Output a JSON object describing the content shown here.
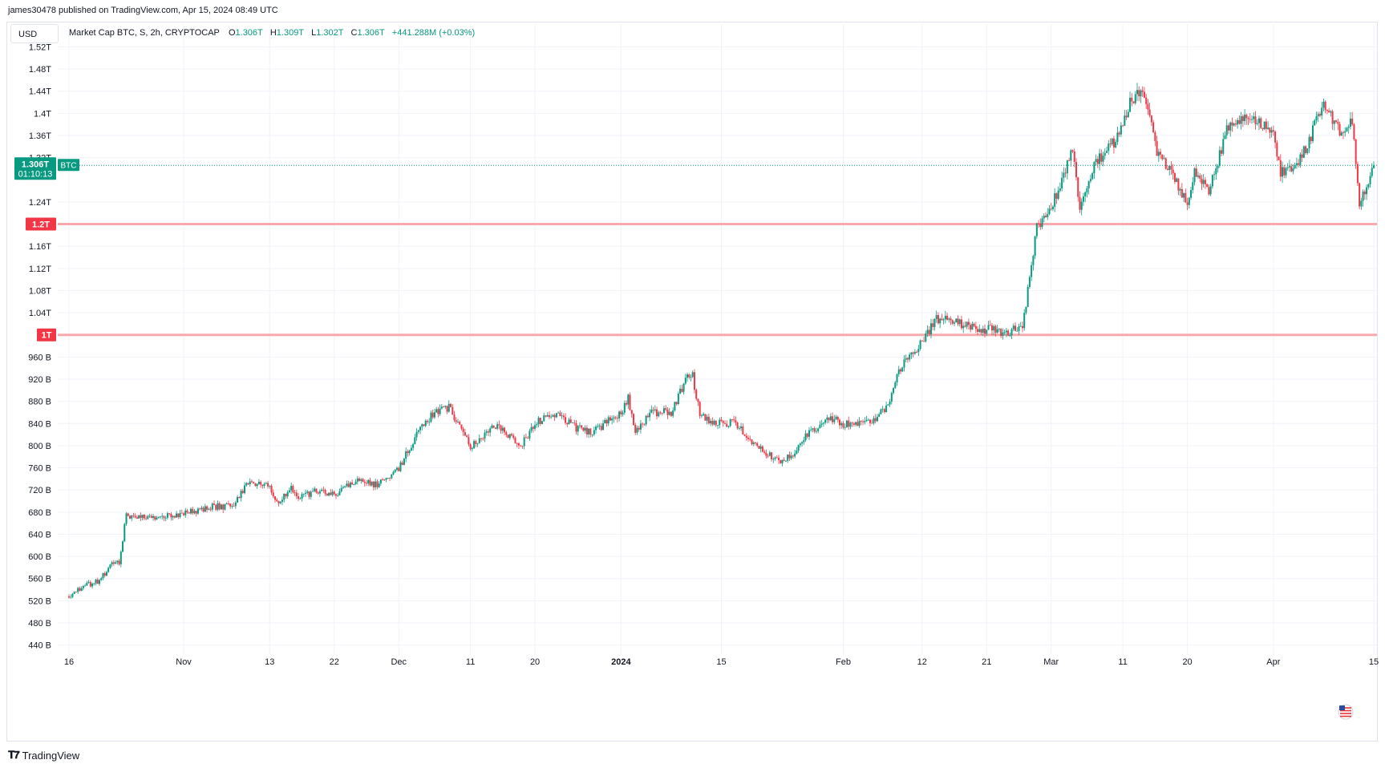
{
  "header": {
    "published_by": "james30478 published on TradingView.com, Apr 15, 2024 08:49 UTC"
  },
  "toolbar": {
    "currency": "USD"
  },
  "legend": {
    "symbol": "Market Cap BTC, S, 2h, CRYPTOCAP",
    "open_label": "O",
    "open": "1.306T",
    "high_label": "H",
    "high": "1.309T",
    "low_label": "L",
    "low": "1.302T",
    "close_label": "C",
    "close": "1.306T",
    "change": "+441.288M (+0.03%)"
  },
  "price_tag": {
    "value": "1.306T",
    "countdown": "01:10:13",
    "ticker": "BTC"
  },
  "colors": {
    "up": "#089981",
    "down": "#f23645",
    "hline": "#f7a9ad",
    "hline_label": "#f23645",
    "grid": "#f0f3fa"
  },
  "horizontal_lines": [
    {
      "label": "1.2T",
      "value": 1.2
    },
    {
      "label": "1T",
      "value": 1.0
    }
  ],
  "footer": {
    "brand": "TradingView",
    "brand_icon": "tradingview-logo-icon",
    "flag_icon": "us-flag-icon"
  },
  "chart_data": {
    "type": "candlestick",
    "title": "Market Cap BTC, S, 2h, CRYPTOCAP",
    "y_unit": "USD",
    "ylim": [
      0.425,
      1.525
    ],
    "y_ticks": [
      {
        "label": "440 B",
        "value": 0.44
      },
      {
        "label": "480 B",
        "value": 0.48
      },
      {
        "label": "520 B",
        "value": 0.52
      },
      {
        "label": "560 B",
        "value": 0.56
      },
      {
        "label": "600 B",
        "value": 0.6
      },
      {
        "label": "640 B",
        "value": 0.64
      },
      {
        "label": "680 B",
        "value": 0.68
      },
      {
        "label": "720 B",
        "value": 0.72
      },
      {
        "label": "760 B",
        "value": 0.76
      },
      {
        "label": "800 B",
        "value": 0.8
      },
      {
        "label": "840 B",
        "value": 0.84
      },
      {
        "label": "880 B",
        "value": 0.88
      },
      {
        "label": "920 B",
        "value": 0.92
      },
      {
        "label": "960 B",
        "value": 0.96
      },
      {
        "label": "1.04T",
        "value": 1.04
      },
      {
        "label": "1.08T",
        "value": 1.08
      },
      {
        "label": "1.12T",
        "value": 1.12
      },
      {
        "label": "1.16T",
        "value": 1.16
      },
      {
        "label": "1.24T",
        "value": 1.24
      },
      {
        "label": "1.32T",
        "value": 1.32
      },
      {
        "label": "1.36T",
        "value": 1.36
      },
      {
        "label": "1.4T",
        "value": 1.4
      },
      {
        "label": "1.44T",
        "value": 1.44
      },
      {
        "label": "1.48T",
        "value": 1.48
      },
      {
        "label": "1.52T",
        "value": 1.52
      }
    ],
    "x_ticks": [
      {
        "label": "16",
        "date": "2023-10-16",
        "bold": false
      },
      {
        "label": "Nov",
        "date": "2023-11-01",
        "bold": false
      },
      {
        "label": "13",
        "date": "2023-11-13",
        "bold": false
      },
      {
        "label": "22",
        "date": "2023-11-22",
        "bold": false
      },
      {
        "label": "Dec",
        "date": "2023-12-01",
        "bold": false
      },
      {
        "label": "11",
        "date": "2023-12-11",
        "bold": false
      },
      {
        "label": "20",
        "date": "2023-12-20",
        "bold": false
      },
      {
        "label": "2024",
        "date": "2024-01-01",
        "bold": true
      },
      {
        "label": "15",
        "date": "2024-01-15",
        "bold": false
      },
      {
        "label": "Feb",
        "date": "2024-02-01",
        "bold": false
      },
      {
        "label": "12",
        "date": "2024-02-12",
        "bold": false
      },
      {
        "label": "21",
        "date": "2024-02-21",
        "bold": false
      },
      {
        "label": "Mar",
        "date": "2024-03-01",
        "bold": false
      },
      {
        "label": "11",
        "date": "2024-03-11",
        "bold": false
      },
      {
        "label": "20",
        "date": "2024-03-20",
        "bold": false
      },
      {
        "label": "Apr",
        "date": "2024-04-01",
        "bold": false
      },
      {
        "label": "15",
        "date": "2024-04-15",
        "bold": false
      }
    ],
    "path_keypoints": [
      {
        "date": "2023-10-16",
        "value": 0.528
      },
      {
        "date": "2023-10-18",
        "value": 0.545
      },
      {
        "date": "2023-10-20",
        "value": 0.555
      },
      {
        "date": "2023-10-22",
        "value": 0.585
      },
      {
        "date": "2023-10-23",
        "value": 0.59
      },
      {
        "date": "2023-10-24",
        "value": 0.675
      },
      {
        "date": "2023-10-27",
        "value": 0.668
      },
      {
        "date": "2023-11-01",
        "value": 0.678
      },
      {
        "date": "2023-11-05",
        "value": 0.69
      },
      {
        "date": "2023-11-08",
        "value": 0.69
      },
      {
        "date": "2023-11-10",
        "value": 0.735
      },
      {
        "date": "2023-11-13",
        "value": 0.725
      },
      {
        "date": "2023-11-14",
        "value": 0.695
      },
      {
        "date": "2023-11-16",
        "value": 0.725
      },
      {
        "date": "2023-11-17",
        "value": 0.705
      },
      {
        "date": "2023-11-20",
        "value": 0.72
      },
      {
        "date": "2023-11-22",
        "value": 0.712
      },
      {
        "date": "2023-11-25",
        "value": 0.735
      },
      {
        "date": "2023-11-28",
        "value": 0.73
      },
      {
        "date": "2023-12-01",
        "value": 0.76
      },
      {
        "date": "2023-12-04",
        "value": 0.83
      },
      {
        "date": "2023-12-06",
        "value": 0.86
      },
      {
        "date": "2023-12-08",
        "value": 0.868
      },
      {
        "date": "2023-12-11",
        "value": 0.8
      },
      {
        "date": "2023-12-12",
        "value": 0.805
      },
      {
        "date": "2023-12-14",
        "value": 0.84
      },
      {
        "date": "2023-12-18",
        "value": 0.8
      },
      {
        "date": "2023-12-20",
        "value": 0.84
      },
      {
        "date": "2023-12-23",
        "value": 0.86
      },
      {
        "date": "2023-12-26",
        "value": 0.83
      },
      {
        "date": "2023-12-28",
        "value": 0.825
      },
      {
        "date": "2024-01-01",
        "value": 0.86
      },
      {
        "date": "2024-01-02",
        "value": 0.885
      },
      {
        "date": "2024-01-03",
        "value": 0.82
      },
      {
        "date": "2024-01-05",
        "value": 0.86
      },
      {
        "date": "2024-01-08",
        "value": 0.86
      },
      {
        "date": "2024-01-10",
        "value": 0.92
      },
      {
        "date": "2024-01-11",
        "value": 0.925
      },
      {
        "date": "2024-01-12",
        "value": 0.86
      },
      {
        "date": "2024-01-14",
        "value": 0.84
      },
      {
        "date": "2024-01-17",
        "value": 0.84
      },
      {
        "date": "2024-01-19",
        "value": 0.81
      },
      {
        "date": "2024-01-23",
        "value": 0.77
      },
      {
        "date": "2024-01-25",
        "value": 0.785
      },
      {
        "date": "2024-01-27",
        "value": 0.82
      },
      {
        "date": "2024-01-30",
        "value": 0.85
      },
      {
        "date": "2024-02-01",
        "value": 0.84
      },
      {
        "date": "2024-02-05",
        "value": 0.845
      },
      {
        "date": "2024-02-07",
        "value": 0.87
      },
      {
        "date": "2024-02-09",
        "value": 0.94
      },
      {
        "date": "2024-02-12",
        "value": 0.985
      },
      {
        "date": "2024-02-14",
        "value": 1.03
      },
      {
        "date": "2024-02-18",
        "value": 1.02
      },
      {
        "date": "2024-02-21",
        "value": 1.01
      },
      {
        "date": "2024-02-23",
        "value": 1.005
      },
      {
        "date": "2024-02-26",
        "value": 1.01
      },
      {
        "date": "2024-02-28",
        "value": 1.2
      },
      {
        "date": "2024-02-29",
        "value": 1.21
      },
      {
        "date": "2024-03-01",
        "value": 1.23
      },
      {
        "date": "2024-03-04",
        "value": 1.33
      },
      {
        "date": "2024-03-05",
        "value": 1.22
      },
      {
        "date": "2024-03-07",
        "value": 1.31
      },
      {
        "date": "2024-03-10",
        "value": 1.35
      },
      {
        "date": "2024-03-12",
        "value": 1.42
      },
      {
        "date": "2024-03-14",
        "value": 1.44
      },
      {
        "date": "2024-03-16",
        "value": 1.32
      },
      {
        "date": "2024-03-18",
        "value": 1.29
      },
      {
        "date": "2024-03-20",
        "value": 1.23
      },
      {
        "date": "2024-03-21",
        "value": 1.3
      },
      {
        "date": "2024-03-23",
        "value": 1.26
      },
      {
        "date": "2024-03-26",
        "value": 1.39
      },
      {
        "date": "2024-03-28",
        "value": 1.39
      },
      {
        "date": "2024-04-01",
        "value": 1.37
      },
      {
        "date": "2024-04-02",
        "value": 1.29
      },
      {
        "date": "2024-04-04",
        "value": 1.3
      },
      {
        "date": "2024-04-06",
        "value": 1.35
      },
      {
        "date": "2024-04-08",
        "value": 1.42
      },
      {
        "date": "2024-04-10",
        "value": 1.37
      },
      {
        "date": "2024-04-12",
        "value": 1.38
      },
      {
        "date": "2024-04-13",
        "value": 1.24
      },
      {
        "date": "2024-04-14",
        "value": 1.26
      },
      {
        "date": "2024-04-15",
        "value": 1.306
      }
    ],
    "last_value": 1.306,
    "grid": true,
    "price_scale": "left"
  }
}
